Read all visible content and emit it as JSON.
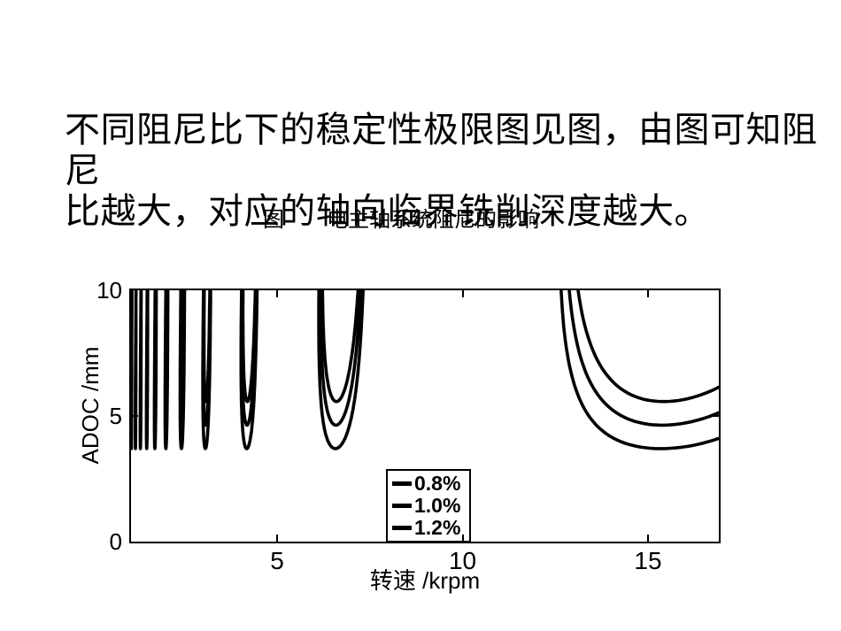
{
  "page": {
    "background": "#ffffff",
    "text_color": "#000000"
  },
  "title": {
    "line1": "不同阻尼比下的稳定性极限图见图，由图可知阻尼",
    "line2": "比越大，对应的轴向临界铣削深度越大。"
  },
  "caption": {
    "prefix": "图",
    "text": "电主轴系统阻尼的影响"
  },
  "chart_data": {
    "type": "line",
    "title": "电主轴系统阻尼的影响",
    "xlabel": "转速 /krpm",
    "ylabel": "ADOC /mm",
    "x_range": [
      1.06,
      16.91
    ],
    "y_range": [
      0,
      10
    ],
    "x_ticks": [
      5,
      10,
      15
    ],
    "y_ticks": [
      0,
      5,
      10
    ],
    "grid": false,
    "line_color": "#000000",
    "line_width": 3.6,
    "legend": {
      "position": "inside-bottom-center",
      "entries": [
        "0.8%",
        "1.0%",
        "1.2%"
      ]
    },
    "series": [
      {
        "name": "0.8%",
        "damping_ratio": 0.008,
        "color": "#000000",
        "min_stable_depth_mm": 3.7,
        "right_asymptote_mm": 3.7,
        "main_lobe_min_at_krpm": 6.5,
        "right_lobe_descent_at_krpm": 12.0
      },
      {
        "name": "1.0%",
        "damping_ratio": 0.01,
        "color": "#000000",
        "min_stable_depth_mm": 4.65,
        "right_asymptote_mm": 4.65,
        "main_lobe_min_at_krpm": 6.5,
        "right_lobe_descent_at_krpm": 12.4
      },
      {
        "name": "1.2%",
        "damping_ratio": 0.012,
        "color": "#000000",
        "min_stable_depth_mm": 5.6,
        "right_asymptote_mm": 5.6,
        "main_lobe_min_at_krpm": 6.6,
        "right_lobe_descent_at_krpm": 12.85
      }
    ],
    "model": {
      "kind": "regenerative-chatter-stability-lobes",
      "natural_freq_hz": 190,
      "depth_scale": 114.7,
      "lobe_count": 15,
      "samples_per_lobe": 240,
      "note": "a_lim = C*((1-r^2)^2+(2*zeta*r)^2)/(r^2-1); eps = pi + 2*atan2(r^2-1, 2*zeta*r); n = 60*fn*r/(k + eps/2pi)"
    },
    "visible_lobe_minima_krpm": [
      6.5,
      3.9,
      2.7,
      2.1,
      1.7,
      1.45,
      1.25,
      1.1
    ]
  }
}
